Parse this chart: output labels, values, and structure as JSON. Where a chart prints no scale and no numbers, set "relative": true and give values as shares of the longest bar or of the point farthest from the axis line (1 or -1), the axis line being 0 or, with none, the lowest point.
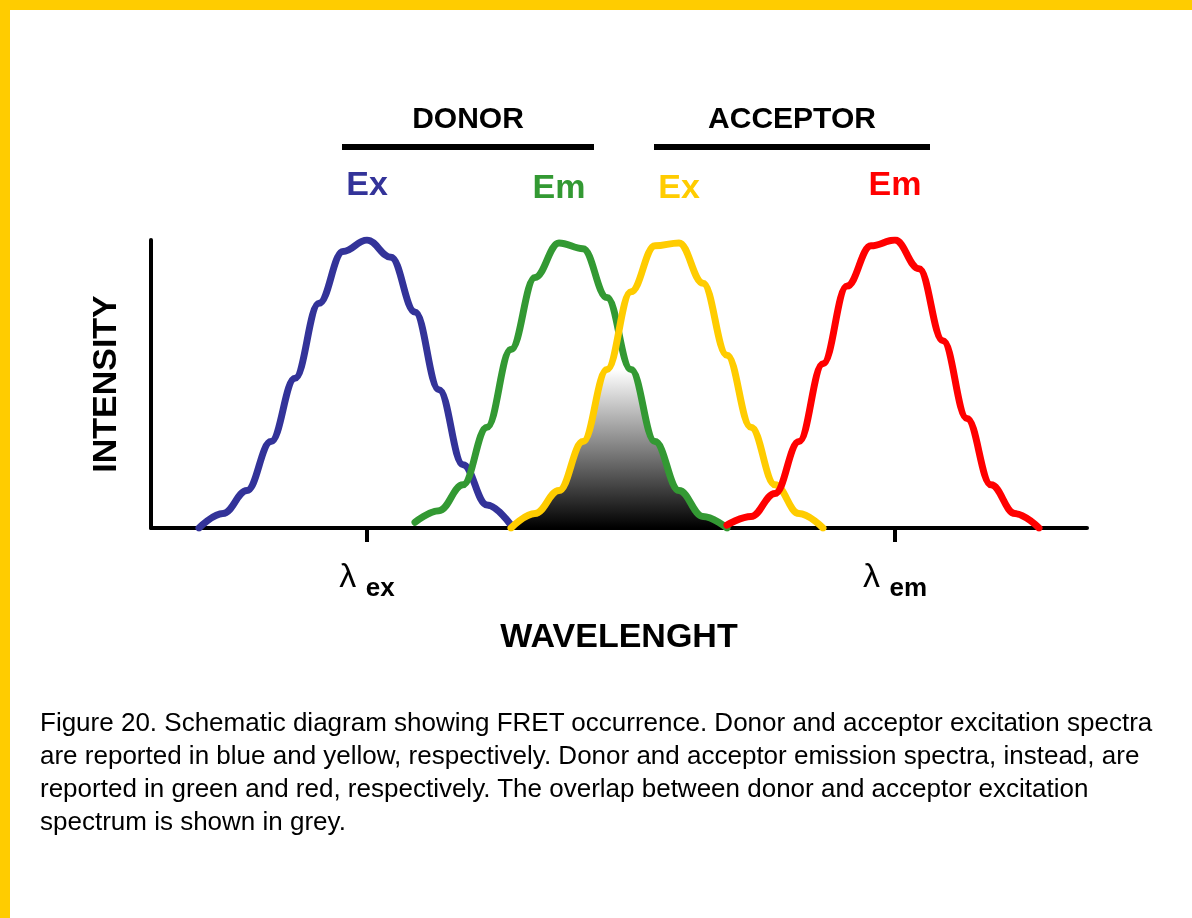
{
  "chart_data": {
    "type": "line",
    "relative": true,
    "xlabel": "WAVELENGHT",
    "ylabel": "INTENSITY",
    "categories": [
      null,
      null,
      null,
      null,
      null,
      null,
      null,
      null,
      null,
      "λ$_{ex}$",
      null,
      null,
      null,
      null,
      null,
      null,
      null,
      null,
      null,
      null,
      null,
      null,
      null,
      null,
      null,
      null,
      null,
      null,
      null,
      null,
      null,
      "λ$_{em}$",
      null,
      null,
      null,
      null,
      null,
      null,
      null,
      null
    ],
    "series": [
      {
        "name": "Ex",
        "color": "#333399",
        "values": [
          null,
          null,
          0,
          0.05,
          0.13,
          0.3,
          0.52,
          0.78,
          0.96,
          1,
          0.94,
          0.75,
          0.48,
          0.22,
          0.08,
          0.01,
          null,
          null,
          null,
          null,
          null,
          null,
          null,
          null,
          null,
          null,
          null,
          null,
          null,
          null,
          null,
          null,
          null,
          null,
          null,
          null,
          null,
          null,
          null,
          null
        ]
      },
      {
        "name": "Em",
        "color": "#339933",
        "values": [
          null,
          null,
          null,
          null,
          null,
          null,
          null,
          null,
          null,
          null,
          null,
          0.02,
          0.06,
          0.15,
          0.35,
          0.62,
          0.87,
          0.99,
          0.97,
          0.8,
          0.55,
          0.3,
          0.13,
          0.04,
          0,
          null,
          null,
          null,
          null,
          null,
          null,
          null,
          null,
          null,
          null,
          null,
          null,
          null,
          null,
          null
        ]
      },
      {
        "name": "Ex",
        "color": "#ffcc00",
        "values": [
          null,
          null,
          null,
          null,
          null,
          null,
          null,
          null,
          null,
          null,
          null,
          null,
          null,
          null,
          null,
          0,
          0.05,
          0.13,
          0.3,
          0.55,
          0.82,
          0.98,
          0.99,
          0.85,
          0.6,
          0.35,
          0.15,
          0.05,
          0,
          null,
          null,
          null,
          null,
          null,
          null,
          null,
          null,
          null,
          null,
          null
        ]
      },
      {
        "name": "Em",
        "color": "#ff0000",
        "values": [
          null,
          null,
          null,
          null,
          null,
          null,
          null,
          null,
          null,
          null,
          null,
          null,
          null,
          null,
          null,
          null,
          null,
          null,
          null,
          null,
          null,
          null,
          null,
          null,
          0.01,
          0.04,
          0.12,
          0.3,
          0.57,
          0.84,
          0.98,
          1,
          0.9,
          0.65,
          0.38,
          0.15,
          0.05,
          0,
          null,
          null
        ]
      },
      {
        "type": "area",
        "color": "#808080",
        "values": [
          null,
          null,
          null,
          null,
          null,
          null,
          null,
          null,
          null,
          null,
          null,
          null,
          null,
          null,
          null,
          0,
          0.05,
          0.13,
          0.3,
          0.55,
          0.55,
          0.3,
          0.13,
          0.04,
          0,
          null,
          null,
          null,
          null,
          null,
          null,
          null,
          null,
          null,
          null,
          null,
          null,
          null,
          null,
          null
        ]
      }
    ],
    "annotations": [
      "DONOR",
      "ACCEPTOR",
      "Figure 20. Schematic diagram showing FRET occurrence. Donor and acceptor excitation spectra are reported in blue and yellow, respectively. Donor and acceptor emission spectra, instead, are reported in green and red, respectively. The overlap between donor and acceptor excitation spectrum is shown in grey."
    ],
    "legend": false,
    "grid": false,
    "marker": "none",
    "line_style": "solid"
  }
}
